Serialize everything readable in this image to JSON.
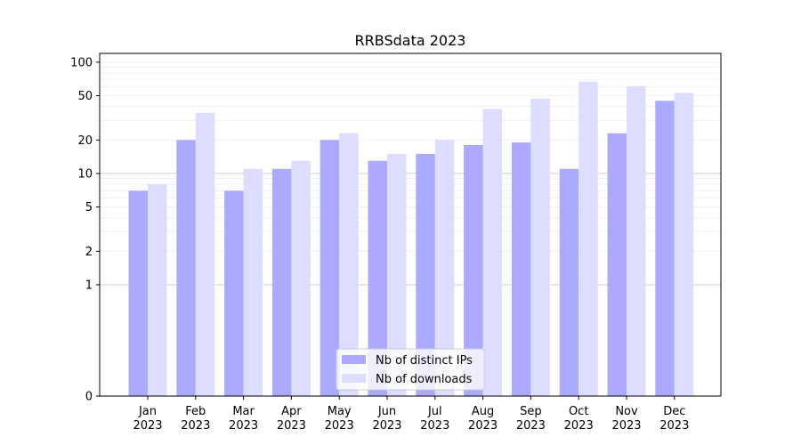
{
  "chart_data": {
    "type": "bar",
    "title": "RRBSdata 2023",
    "xlabel": "",
    "ylabel": "",
    "y_scale": "symlog",
    "y_linear_threshold": 1,
    "ylim": [
      0,
      120
    ],
    "y_ticks": [
      0,
      1,
      2,
      5,
      10,
      20,
      50,
      100
    ],
    "y_tick_labels": [
      "0",
      "1",
      "2",
      "5",
      "10",
      "20",
      "50",
      "100"
    ],
    "categories": [
      "Jan",
      "Feb",
      "Mar",
      "Apr",
      "May",
      "Jun",
      "Jul",
      "Aug",
      "Sep",
      "Oct",
      "Nov",
      "Dec"
    ],
    "category_sublabels": [
      "2023",
      "2023",
      "2023",
      "2023",
      "2023",
      "2023",
      "2023",
      "2023",
      "2023",
      "2023",
      "2023",
      "2023"
    ],
    "series": [
      {
        "name": "Nb of distinct IPs",
        "color": "#aaaaff",
        "values": [
          7,
          20,
          7,
          11,
          20,
          13,
          15,
          18,
          19,
          11,
          23,
          45
        ]
      },
      {
        "name": "Nb of downloads",
        "color": "#ddddff",
        "values": [
          8,
          35,
          11,
          13,
          23,
          15,
          20,
          38,
          47,
          67,
          61,
          53
        ]
      }
    ],
    "grid": "y-major-and-minor",
    "legend_position": "lower-center"
  }
}
